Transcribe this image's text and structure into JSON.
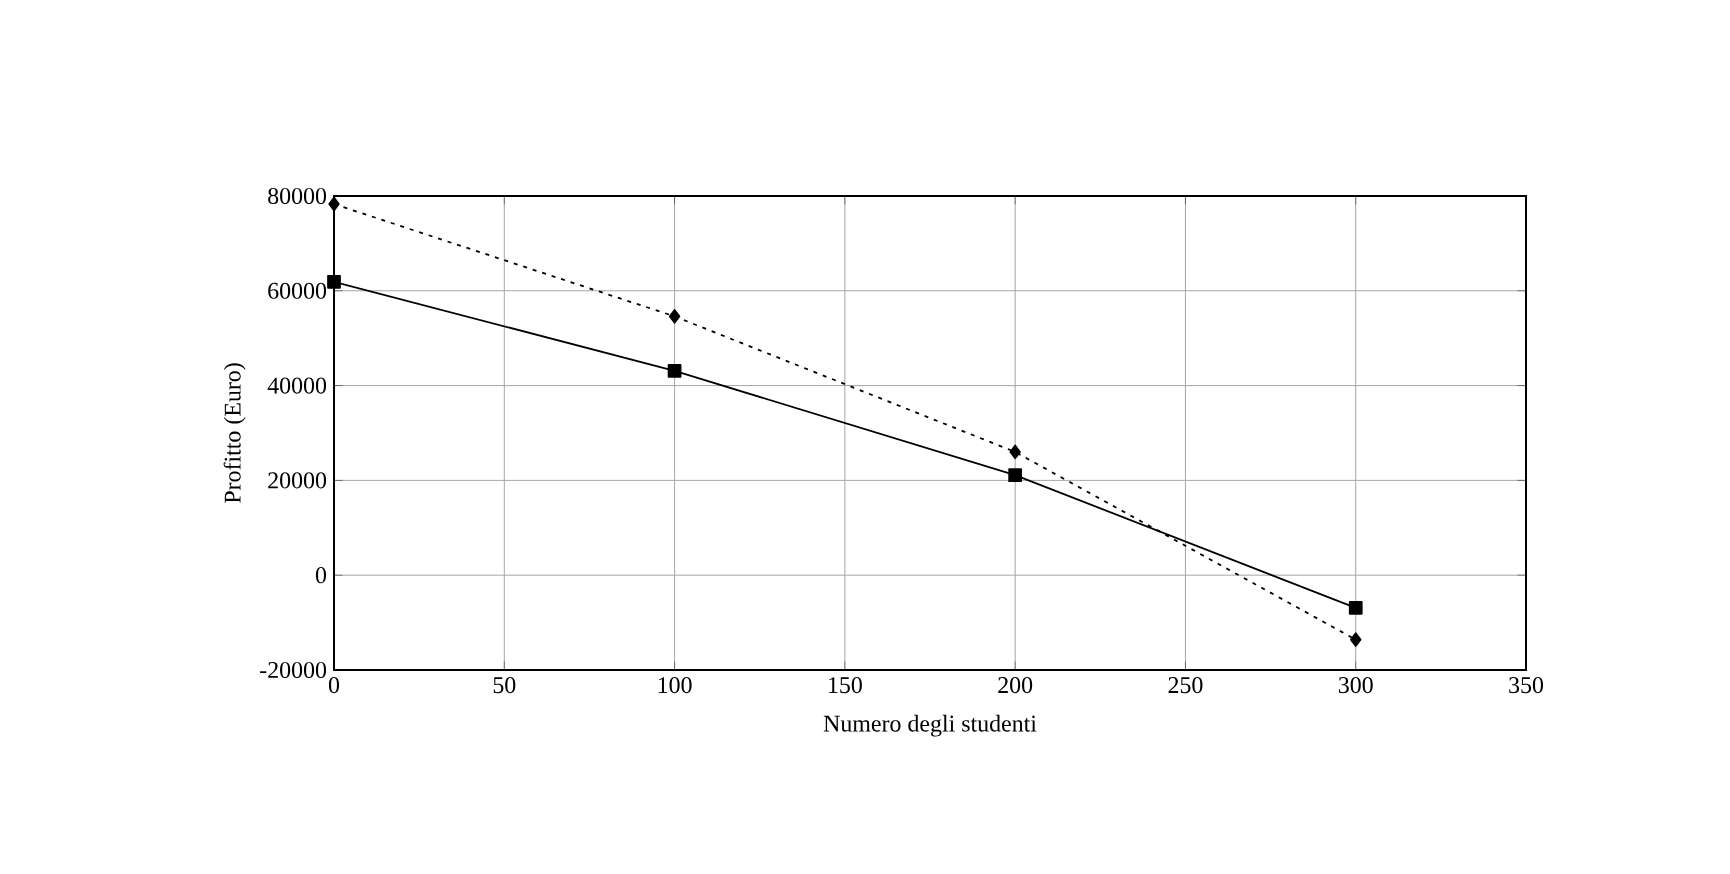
{
  "chart_data": {
    "type": "line",
    "xlabel": "Numero degli studenti",
    "ylabel": "Profitto (Euro)",
    "grid": true,
    "x": [
      0,
      100,
      200,
      300
    ],
    "series": [
      {
        "color": "#000000",
        "marker": "diamond",
        "line_style": "dotted",
        "values": [
          78300,
          54600,
          26000,
          -13600
        ]
      },
      {
        "color": "#000000",
        "marker": "square",
        "line_style": "solid",
        "values": [
          61900,
          43100,
          21100,
          -6900
        ]
      }
    ],
    "xlim": [
      0,
      350
    ],
    "xticks": [
      0,
      50,
      100,
      150,
      200,
      250,
      300,
      350
    ],
    "ylim": [
      -20000,
      80000
    ],
    "yticks": [
      -20000,
      0,
      20000,
      40000,
      60000,
      80000
    ]
  }
}
